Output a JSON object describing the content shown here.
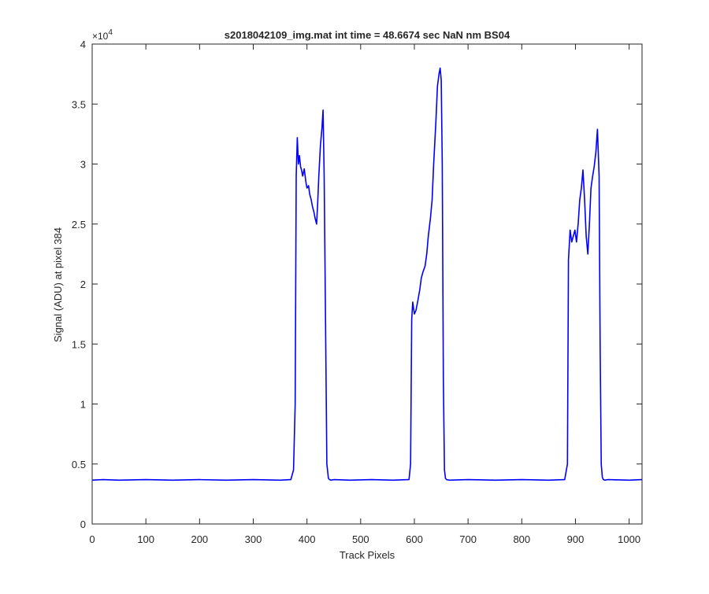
{
  "chart_data": {
    "type": "line",
    "title": "s2018042109_img.mat int time = 48.6674 sec  NaN nm BS04",
    "xlabel": "Track Pixels",
    "ylabel": "Signal (ADU) at pixel 384",
    "xlim": [
      0,
      1024
    ],
    "ylim": [
      0,
      40000
    ],
    "x_ticks": [
      0,
      100,
      200,
      300,
      400,
      500,
      600,
      700,
      800,
      900,
      1000
    ],
    "x_tick_labels": [
      "0",
      "100",
      "200",
      "300",
      "400",
      "500",
      "600",
      "700",
      "800",
      "900",
      "1000"
    ],
    "y_ticks": [
      0,
      5000,
      10000,
      15000,
      20000,
      25000,
      30000,
      35000,
      40000
    ],
    "y_tick_labels": [
      "0",
      "0.5",
      "1",
      "1.5",
      "2",
      "2.5",
      "3",
      "3.5",
      "4"
    ],
    "y_exponent": "×10",
    "y_exponent_power": "4",
    "grid": false,
    "series": [
      {
        "color": "#0000ff",
        "x": [
          0,
          20,
          50,
          100,
          150,
          200,
          250,
          300,
          350,
          370,
          375,
          378,
          380,
          382,
          384,
          386,
          388,
          390,
          392,
          395,
          398,
          400,
          403,
          405,
          408,
          410,
          413,
          415,
          418,
          420,
          422,
          425,
          428,
          430,
          432,
          435,
          437,
          440,
          442,
          445,
          450,
          480,
          520,
          560,
          590,
          593,
          595,
          597,
          600,
          603,
          606,
          610,
          613,
          616,
          620,
          623,
          626,
          630,
          633,
          636,
          640,
          643,
          646,
          648,
          650,
          652,
          654,
          656,
          658,
          660,
          665,
          700,
          750,
          800,
          850,
          880,
          885,
          887,
          890,
          893,
          896,
          899,
          902,
          905,
          908,
          911,
          914,
          917,
          920,
          923,
          926,
          929,
          932,
          935,
          938,
          941,
          944,
          946,
          948,
          950,
          952,
          955,
          960,
          1000,
          1024
        ],
        "y": [
          3650,
          3700,
          3650,
          3700,
          3650,
          3700,
          3650,
          3700,
          3650,
          3700,
          4500,
          10000,
          29000,
          32200,
          30000,
          30700,
          29800,
          29500,
          29000,
          29600,
          28500,
          28000,
          28200,
          27500,
          27000,
          26500,
          26000,
          25500,
          25000,
          26800,
          29000,
          31500,
          33000,
          34500,
          29000,
          15000,
          5000,
          3800,
          3700,
          3650,
          3700,
          3650,
          3700,
          3650,
          3700,
          5000,
          17000,
          18500,
          17500,
          17800,
          18500,
          19500,
          20500,
          21000,
          21500,
          22500,
          24000,
          25500,
          27000,
          30000,
          33500,
          36500,
          37500,
          38000,
          37000,
          30000,
          12000,
          4500,
          3800,
          3700,
          3650,
          3700,
          3650,
          3700,
          3650,
          3700,
          5000,
          22000,
          24500,
          23500,
          24000,
          24500,
          23500,
          25000,
          27000,
          28000,
          29500,
          27000,
          24000,
          22500,
          25000,
          28000,
          29000,
          29800,
          31000,
          32900,
          29000,
          15000,
          5000,
          3900,
          3700,
          3650,
          3700,
          3650,
          3700
        ]
      }
    ]
  }
}
